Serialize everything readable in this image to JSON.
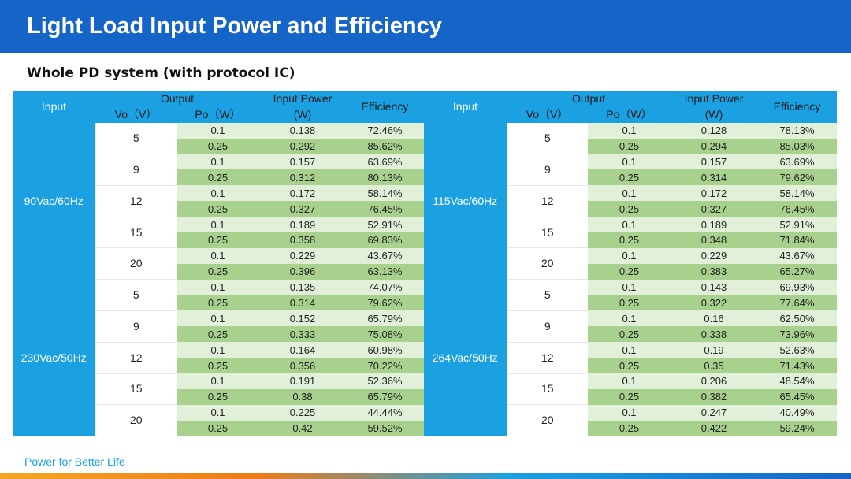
{
  "title": "Light Load Input Power and Efficiency",
  "subtitle": "Whole PD system (with protocol IC)",
  "footer": "Power for Better Life",
  "headers": {
    "input": "Input",
    "output": "Output",
    "vo": "Vo（V）",
    "po": "Po（W）",
    "input_power": "Input Power",
    "input_power_unit": "(W)",
    "efficiency": "Efficiency"
  },
  "tables": [
    {
      "groups": [
        {
          "input": "90Vac/60Hz",
          "rows": [
            {
              "vo": "5",
              "vals": [
                [
                  "0.1",
                  "0.138",
                  "72.46%"
                ],
                [
                  "0.25",
                  "0.292",
                  "85.62%"
                ]
              ]
            },
            {
              "vo": "9",
              "vals": [
                [
                  "0.1",
                  "0.157",
                  "63.69%"
                ],
                [
                  "0.25",
                  "0.312",
                  "80.13%"
                ]
              ]
            },
            {
              "vo": "12",
              "vals": [
                [
                  "0.1",
                  "0.172",
                  "58.14%"
                ],
                [
                  "0.25",
                  "0.327",
                  "76.45%"
                ]
              ]
            },
            {
              "vo": "15",
              "vals": [
                [
                  "0.1",
                  "0.189",
                  "52.91%"
                ],
                [
                  "0.25",
                  "0.358",
                  "69.83%"
                ]
              ]
            },
            {
              "vo": "20",
              "vals": [
                [
                  "0.1",
                  "0.229",
                  "43.67%"
                ],
                [
                  "0.25",
                  "0.396",
                  "63.13%"
                ]
              ]
            }
          ]
        },
        {
          "input": "230Vac/50Hz",
          "rows": [
            {
              "vo": "5",
              "vals": [
                [
                  "0.1",
                  "0.135",
                  "74.07%"
                ],
                [
                  "0.25",
                  "0.314",
                  "79.62%"
                ]
              ]
            },
            {
              "vo": "9",
              "vals": [
                [
                  "0.1",
                  "0.152",
                  "65.79%"
                ],
                [
                  "0.25",
                  "0.333",
                  "75.08%"
                ]
              ]
            },
            {
              "vo": "12",
              "vals": [
                [
                  "0.1",
                  "0.164",
                  "60.98%"
                ],
                [
                  "0.25",
                  "0.356",
                  "70.22%"
                ]
              ]
            },
            {
              "vo": "15",
              "vals": [
                [
                  "0.1",
                  "0.191",
                  "52.36%"
                ],
                [
                  "0.25",
                  "0.38",
                  "65.79%"
                ]
              ]
            },
            {
              "vo": "20",
              "vals": [
                [
                  "0.1",
                  "0.225",
                  "44.44%"
                ],
                [
                  "0.25",
                  "0.42",
                  "59.52%"
                ]
              ]
            }
          ]
        }
      ]
    },
    {
      "groups": [
        {
          "input": "115Vac/60Hz",
          "rows": [
            {
              "vo": "5",
              "vals": [
                [
                  "0.1",
                  "0.128",
                  "78.13%"
                ],
                [
                  "0.25",
                  "0.294",
                  "85.03%"
                ]
              ]
            },
            {
              "vo": "9",
              "vals": [
                [
                  "0.1",
                  "0.157",
                  "63.69%"
                ],
                [
                  "0.25",
                  "0.314",
                  "79.62%"
                ]
              ]
            },
            {
              "vo": "12",
              "vals": [
                [
                  "0.1",
                  "0.172",
                  "58.14%"
                ],
                [
                  "0.25",
                  "0.327",
                  "76.45%"
                ]
              ]
            },
            {
              "vo": "15",
              "vals": [
                [
                  "0.1",
                  "0.189",
                  "52.91%"
                ],
                [
                  "0.25",
                  "0.348",
                  "71.84%"
                ]
              ]
            },
            {
              "vo": "20",
              "vals": [
                [
                  "0.1",
                  "0.229",
                  "43.67%"
                ],
                [
                  "0.25",
                  "0.383",
                  "65.27%"
                ]
              ]
            }
          ]
        },
        {
          "input": "264Vac/50Hz",
          "rows": [
            {
              "vo": "5",
              "vals": [
                [
                  "0.1",
                  "0.143",
                  "69.93%"
                ],
                [
                  "0.25",
                  "0.322",
                  "77.64%"
                ]
              ]
            },
            {
              "vo": "9",
              "vals": [
                [
                  "0.1",
                  "0.16",
                  "62.50%"
                ],
                [
                  "0.25",
                  "0.338",
                  "73.96%"
                ]
              ]
            },
            {
              "vo": "12",
              "vals": [
                [
                  "0.1",
                  "0.19",
                  "52.63%"
                ],
                [
                  "0.25",
                  "0.35",
                  "71.43%"
                ]
              ]
            },
            {
              "vo": "15",
              "vals": [
                [
                  "0.1",
                  "0.206",
                  "48.54%"
                ],
                [
                  "0.25",
                  "0.382",
                  "65.45%"
                ]
              ]
            },
            {
              "vo": "20",
              "vals": [
                [
                  "0.1",
                  "0.247",
                  "40.49%"
                ],
                [
                  "0.25",
                  "0.422",
                  "59.24%"
                ]
              ]
            }
          ]
        }
      ]
    }
  ]
}
